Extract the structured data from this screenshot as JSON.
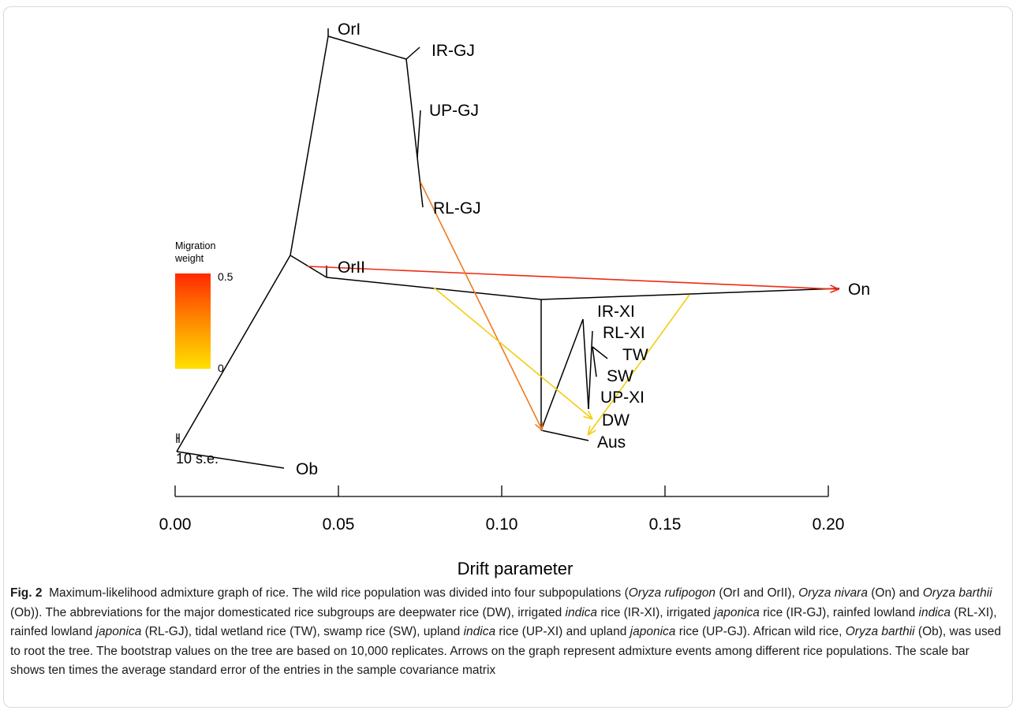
{
  "chart_data": {
    "type": "admixture-graph",
    "xlabel": "Drift parameter",
    "xlim": [
      0,
      0.2
    ],
    "x_ticks": [
      "0.00",
      "0.05",
      "0.10",
      "0.15",
      "0.20"
    ],
    "scale_bar_label": "10 s.e.",
    "legend": {
      "title_lines": [
        "Migration",
        "weight"
      ],
      "max_label": "0.5",
      "min_label": "0",
      "color_high": "#ff2a00",
      "color_low": "#ffe100"
    },
    "populations": [
      "OrI",
      "IR-GJ",
      "UP-GJ",
      "RL-GJ",
      "OrII",
      "On",
      "IR-XI",
      "RL-XI",
      "TW",
      "SW",
      "UP-XI",
      "DW",
      "Aus",
      "Ob"
    ],
    "migrations": [
      {
        "from": "OrI/OrII ancestor",
        "to": "On",
        "weight": 0.5
      },
      {
        "from": "RL-GJ lineage",
        "to": "XI ancestor",
        "weight": 0.35
      },
      {
        "from": "OrII-XI lineage",
        "to": "DW",
        "weight": 0.05
      },
      {
        "from": "XI-On lineage",
        "to": "Aus",
        "weight": 0.05
      }
    ]
  },
  "caption": {
    "label": "Fig. 2",
    "seg1": "Maximum-likelihood admixture graph of rice. The wild rice population was divided into four subpopulations (",
    "i1": "Oryza rufipogon",
    "seg2": " (OrI and OrII), ",
    "i2": "Oryza nivara",
    "seg3": " (On) and ",
    "i3": "Oryza barthii",
    "seg4": " (Ob)). The abbreviations for the major domesticated rice subgroups are deepwater rice (DW), irrigated ",
    "i4": "indica",
    "seg5": " rice (IR-XI), irrigated ",
    "i5": "japonica",
    "seg6": " rice (IR-GJ), rainfed lowland ",
    "i6": "indica",
    "seg7": " (RL-XI), rainfed lowland ",
    "i7": "japonica",
    "seg8": " (RL-GJ), tidal wetland rice (TW), swamp rice (SW), upland ",
    "i8": "indica",
    "seg9": " rice (UP-XI) and upland ",
    "i9": "japonica",
    "seg10": " rice (UP-GJ). African wild rice, ",
    "i10": "Oryza barthii",
    "seg11": " (Ob), was used to root the tree. The bootstrap values on the tree are based on 10,000 replicates. Arrows on the graph represent admixture events among different rice populations. The scale bar shows ten times the average standard error of the entries in the sample covariance matrix"
  }
}
